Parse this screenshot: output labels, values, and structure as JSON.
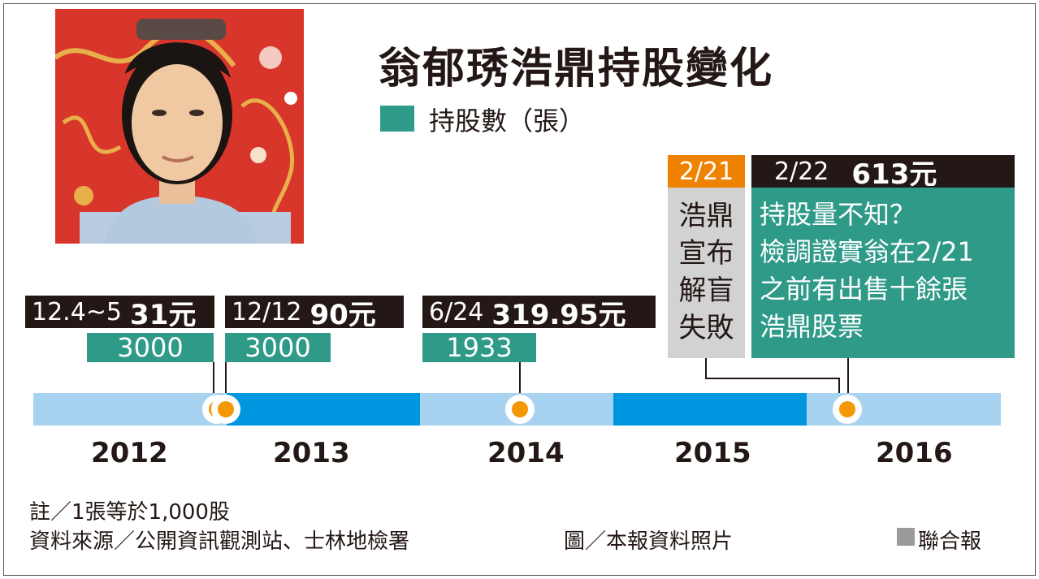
{
  "title": "翁郁琇浩鼎持股變化",
  "legend": {
    "label": "持股數（張）",
    "color": "#2f9a87"
  },
  "events": [
    {
      "date": "12.4~5",
      "price": "31元",
      "shares": "3000"
    },
    {
      "date": "12/12",
      "price": "90元",
      "shares": "3000"
    },
    {
      "date": "6/24",
      "price": "319.95元",
      "shares": "1933"
    }
  ],
  "event_2_21": {
    "date": "2/21",
    "lines": [
      "浩鼎",
      "宣布",
      "解盲",
      "失敗"
    ]
  },
  "event_2_22": {
    "date": "2/22",
    "price": "613元",
    "lines": [
      "持股量不知？",
      "檢調證實翁在2/21",
      "之前有出售十餘張",
      "浩鼎股票"
    ]
  },
  "years": [
    "2012",
    "2013",
    "2014",
    "2015",
    "2016"
  ],
  "notes": {
    "note": "註／1張等於1,000股",
    "source": "資料來源／公開資訊觀測站、士林地檢署",
    "photo_credit": "圖／本報資料照片",
    "brand": "聯合報"
  },
  "colors": {
    "teal": "#2f9a87",
    "dark": "#231815",
    "orange": "#f39800",
    "timeline_light": "#a8d3f0",
    "timeline_dark": "#0097e0",
    "grey": "#d2d2d2"
  }
}
